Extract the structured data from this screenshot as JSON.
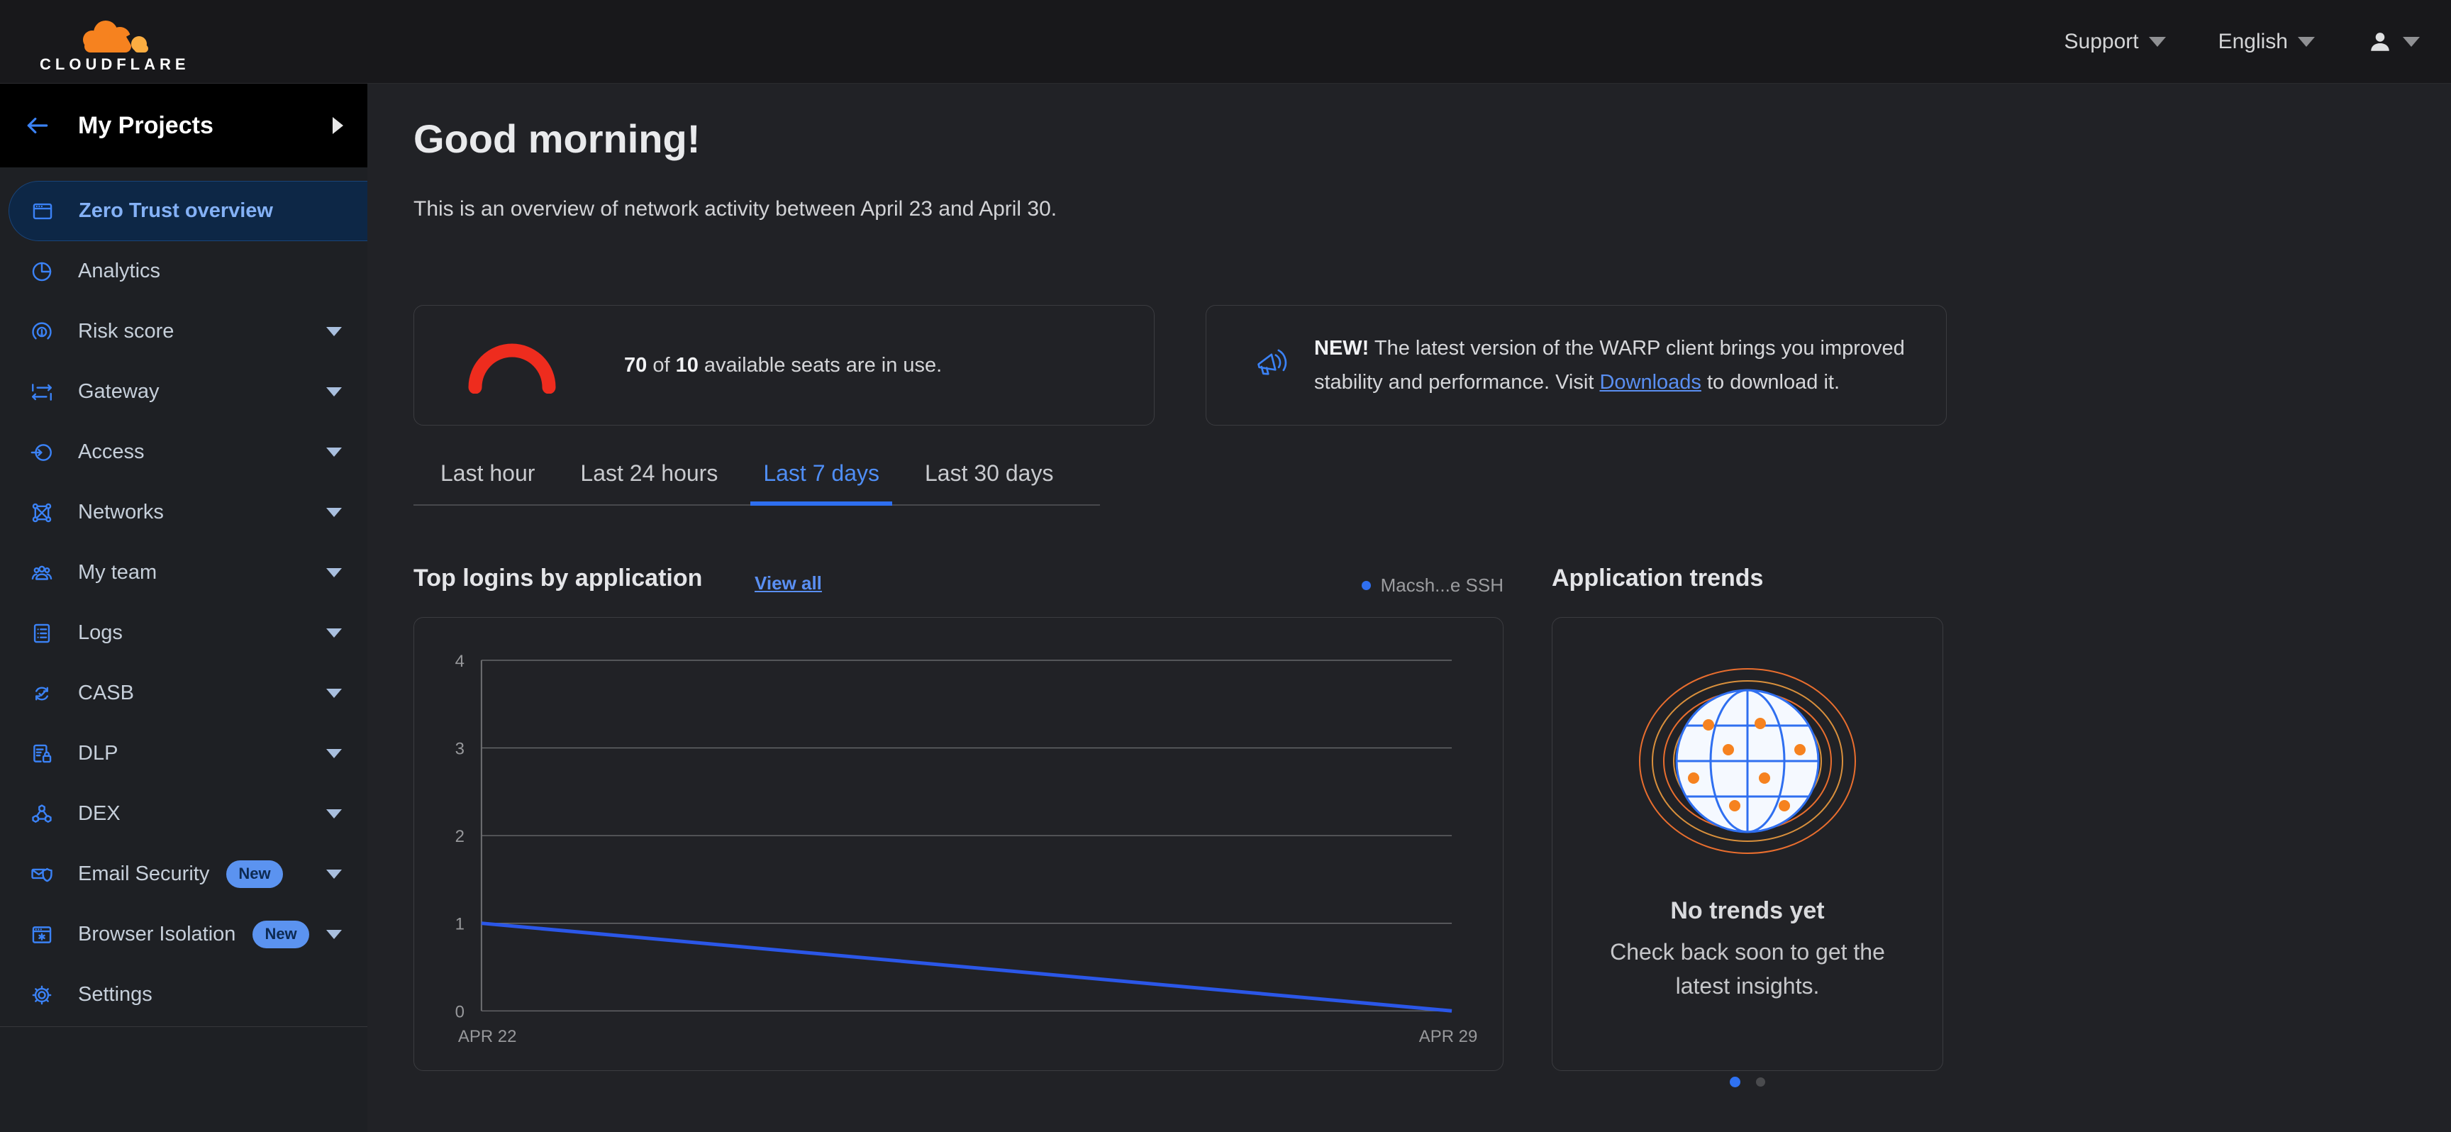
{
  "topbar": {
    "brand": "CLOUDFLARE",
    "support_label": "Support",
    "language_label": "English"
  },
  "sidebar": {
    "header": {
      "title": "My Projects"
    },
    "items": [
      {
        "label": "Zero Trust overview",
        "icon": "overview-icon",
        "active": true
      },
      {
        "label": "Analytics",
        "icon": "analytics-icon"
      },
      {
        "label": "Risk score",
        "icon": "risk-score-icon",
        "expandable": true
      },
      {
        "label": "Gateway",
        "icon": "gateway-icon",
        "expandable": true
      },
      {
        "label": "Access",
        "icon": "access-icon",
        "expandable": true
      },
      {
        "label": "Networks",
        "icon": "networks-icon",
        "expandable": true
      },
      {
        "label": "My team",
        "icon": "my-team-icon",
        "expandable": true
      },
      {
        "label": "Logs",
        "icon": "logs-icon",
        "expandable": true
      },
      {
        "label": "CASB",
        "icon": "casb-icon",
        "expandable": true
      },
      {
        "label": "DLP",
        "icon": "dlp-icon",
        "expandable": true
      },
      {
        "label": "DEX",
        "icon": "dex-icon",
        "expandable": true
      },
      {
        "label": "Email Security",
        "icon": "email-security-icon",
        "badge": "New",
        "expandable": true
      },
      {
        "label": "Browser Isolation",
        "icon": "browser-isolation-icon",
        "badge": "New",
        "expandable": true
      },
      {
        "label": "Settings",
        "icon": "settings-icon"
      }
    ]
  },
  "main": {
    "greeting": "Good morning!",
    "subtitle": "This is an overview of network activity between April 23 and April 30.",
    "seats_card": {
      "used": "70",
      "of_label": "of",
      "total": "10",
      "suffix": "available seats are in use.",
      "gauge_color": "#ee2c1e"
    },
    "warp_banner": {
      "highlight": "NEW!",
      "text_before_link": "The latest version of the WARP client brings you improved stability and performance. Visit",
      "link_label": "Downloads",
      "text_after_link": "to download it."
    },
    "tabs": [
      {
        "label": "Last hour"
      },
      {
        "label": "Last 24 hours"
      },
      {
        "label": "Last 7 days",
        "active": true
      },
      {
        "label": "Last 30 days"
      }
    ],
    "logins_section": {
      "title": "Top logins by application",
      "view_all_label": "View all",
      "legend": [
        {
          "label": "Macsh...e SSH",
          "color": "#2f6ff0"
        }
      ]
    },
    "trends_section": {
      "title": "Application trends",
      "empty_title": "No trends yet",
      "empty_message": "Check back soon to get the latest insights.",
      "pagination": {
        "count": 2,
        "active": 0,
        "active_color": "#2f72f2",
        "inactive_color": "#4a4b4e"
      }
    }
  },
  "chart_data": {
    "type": "line",
    "title": "Top logins by application",
    "x_labels": [
      "APR 22",
      "APR 29"
    ],
    "series": [
      {
        "name": "Macsh...e SSH",
        "color": "#2b57e8",
        "x": [
          "APR 22",
          "APR 29"
        ],
        "values": [
          1,
          0
        ]
      }
    ],
    "ylim": [
      0,
      4
    ],
    "yticks": [
      0,
      1,
      2,
      3,
      4
    ],
    "grid": true,
    "legend_position": "top-right"
  }
}
